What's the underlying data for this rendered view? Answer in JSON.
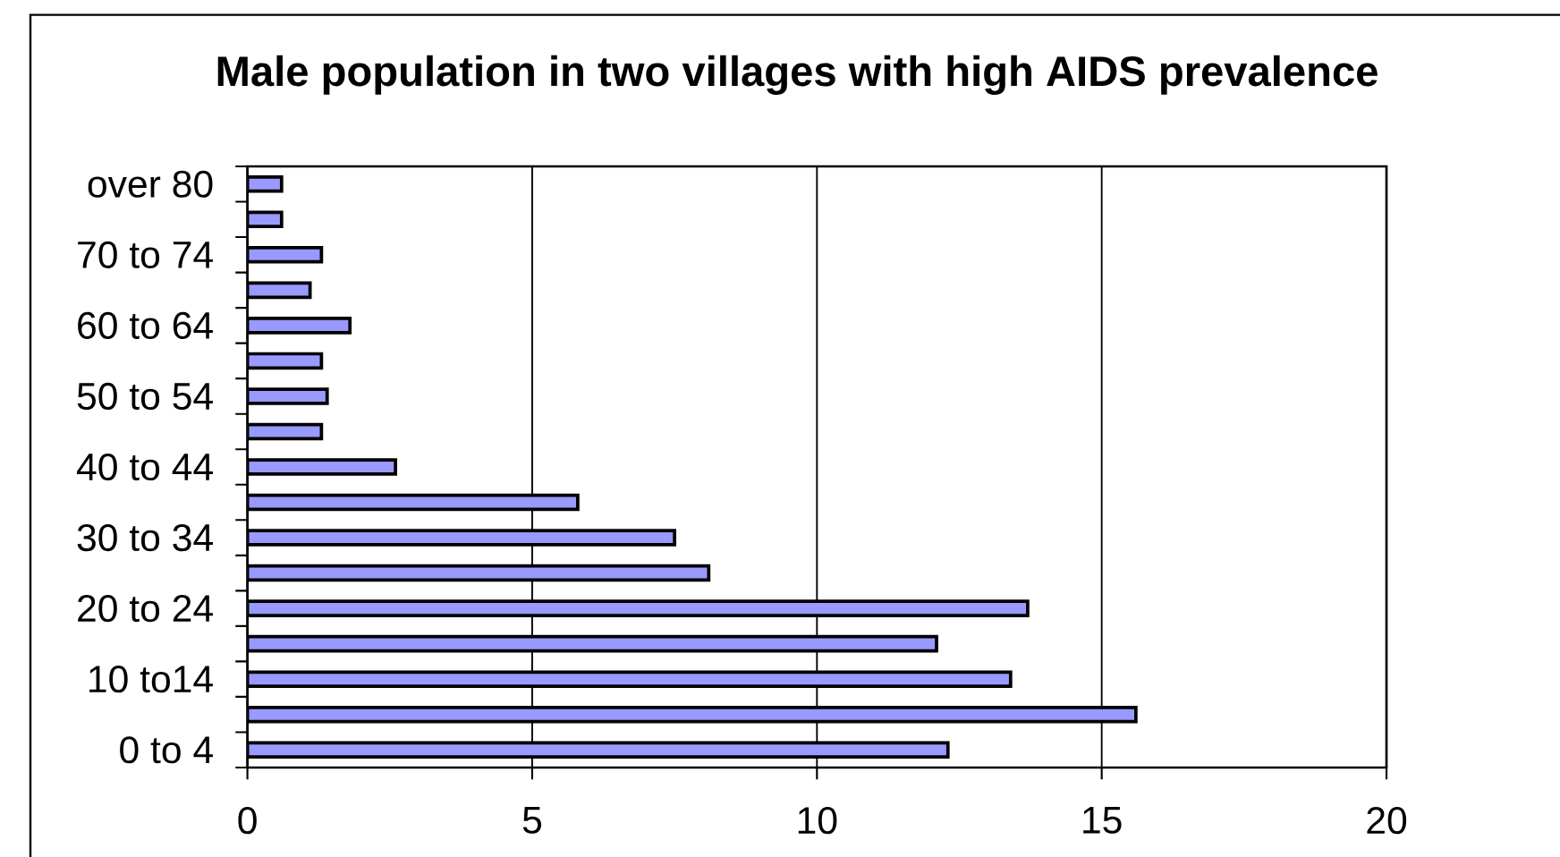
{
  "chart_data": {
    "type": "bar",
    "orientation": "horizontal",
    "title": "Male population in two villages with high AIDS prevalence",
    "categories": [
      "over 80",
      null,
      "70 to 74",
      null,
      "60 to 64",
      null,
      "50 to 54",
      null,
      "40 to 44",
      null,
      "30 to 34",
      null,
      "20 to 24",
      null,
      "10 to14",
      null,
      "0 to 4"
    ],
    "values": [
      0.6,
      0.6,
      1.3,
      1.1,
      1.8,
      1.3,
      1.4,
      1.3,
      2.6,
      5.8,
      7.5,
      8.1,
      13.7,
      12.1,
      13.4,
      15.6,
      12.3
    ],
    "color": "#9999ff",
    "xlim": [
      0,
      20
    ],
    "xticks": [
      0,
      5,
      10,
      15,
      20
    ],
    "grid": "x"
  }
}
